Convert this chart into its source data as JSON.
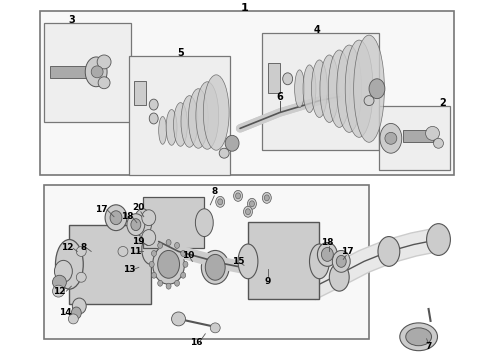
{
  "bg_color": "#ffffff",
  "line_color": "#000000",
  "light_gray": "#cccccc",
  "medium_gray": "#aaaaaa",
  "dark_gray": "#555555",
  "box_facecolor": "#f0f0f0",
  "box_edgecolor": "#777777",
  "fig_width": 4.9,
  "fig_height": 3.6,
  "dpi": 100
}
